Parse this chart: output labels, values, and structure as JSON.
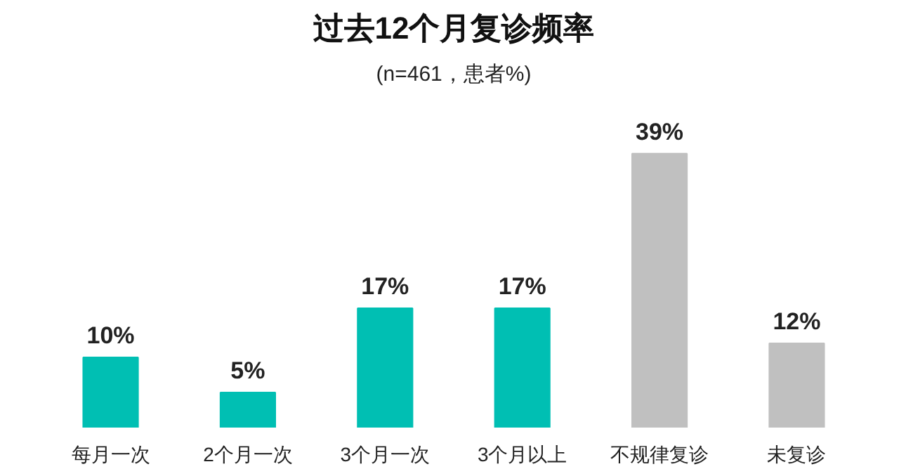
{
  "chart_data": {
    "type": "bar",
    "title": "过去12个月复诊频率",
    "subtitle": "(n=461，患者%)",
    "categories": [
      "每月一次",
      "2个月一次",
      "3个月一次",
      "3个月以上",
      "不规律复诊",
      "未复诊"
    ],
    "values": [
      10,
      5,
      17,
      17,
      39,
      12
    ],
    "colors": [
      "#00bfb3",
      "#00bfb3",
      "#00bfb3",
      "#00bfb3",
      "#c0c0c0",
      "#c0c0c0"
    ],
    "value_labels": [
      "10%",
      "5%",
      "17%",
      "17%",
      "39%",
      "12%"
    ],
    "grid": false
  }
}
